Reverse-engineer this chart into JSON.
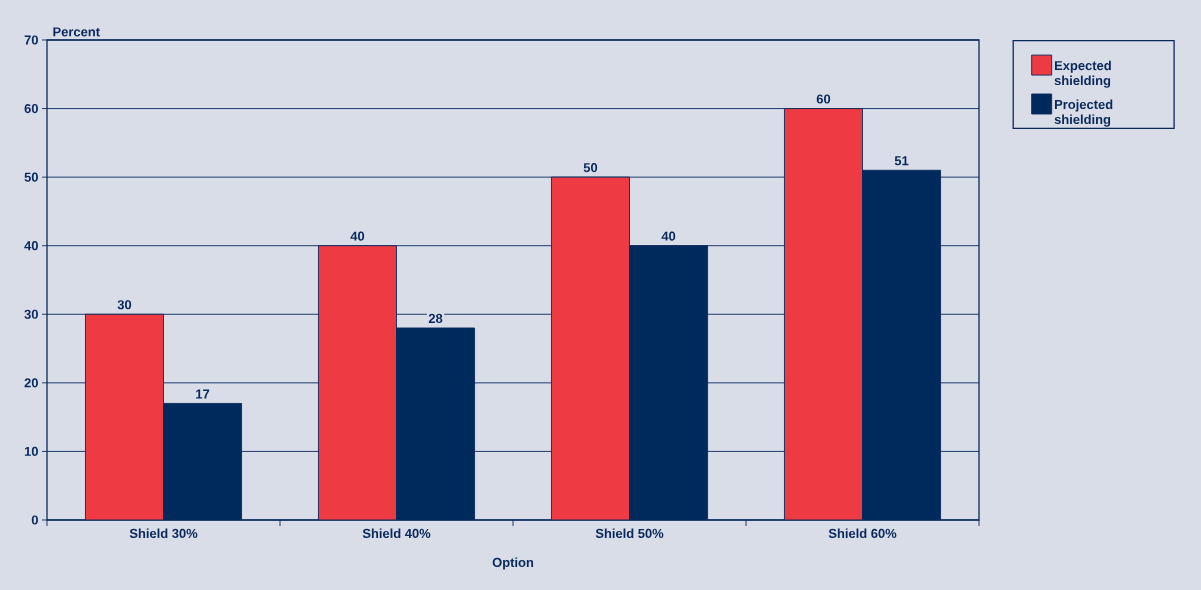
{
  "chart_data": {
    "type": "bar",
    "xlabel": "Option",
    "ylabel": "Percent",
    "categories": [
      "Shield 30%",
      "Shield 40%",
      "Shield 50%",
      "Shield 60%"
    ],
    "series": [
      {
        "name": "Expected shielding",
        "color": "#ee3a43",
        "values": [
          30,
          40,
          50,
          60
        ]
      },
      {
        "name": "Projected shielding",
        "color": "#002a5c",
        "values": [
          17,
          28,
          40,
          51
        ]
      }
    ],
    "ylim": [
      0,
      70
    ],
    "yticks": [
      0,
      10,
      20,
      30,
      40,
      50,
      60,
      70
    ],
    "grid": "y",
    "legend": "top right",
    "data_labels": true
  }
}
